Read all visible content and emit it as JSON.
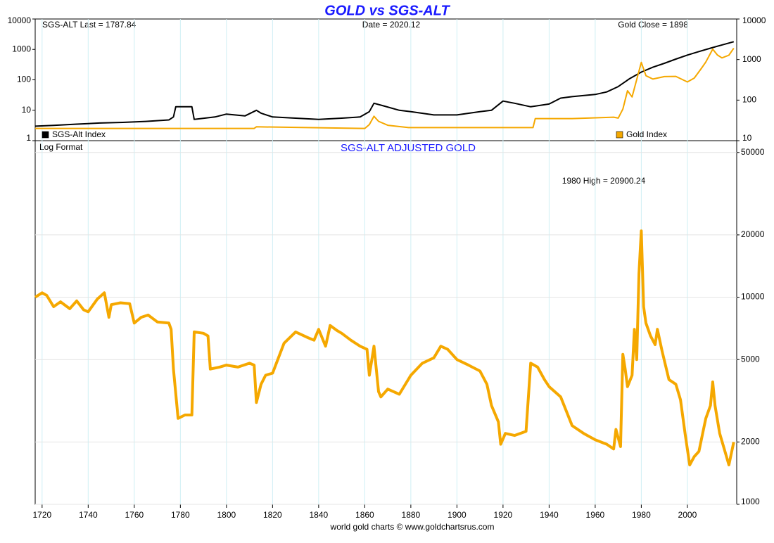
{
  "chart_data": [
    {
      "type": "line",
      "title": "GOLD vs SGS-ALT",
      "annotations": [
        "SGS-ALT Last = 1787.84",
        "Date = 2020.12",
        "Gold Close = 1898"
      ],
      "xlim": [
        1717,
        2021.4
      ],
      "ylim": [
        1,
        10000
      ],
      "yticks": [
        1,
        10,
        100,
        1000,
        10000
      ],
      "y2lim": [
        10,
        10000
      ],
      "y2ticks": [
        10,
        100,
        1000,
        10000
      ],
      "log_scale": true,
      "series": [
        {
          "name": "SGS-Alt Index",
          "color": "#000000",
          "x": [
            1717,
            1725,
            1735,
            1745,
            1755,
            1765,
            1775,
            1777,
            1778,
            1785,
            1786,
            1795,
            1800,
            1808,
            1813,
            1815,
            1820,
            1830,
            1840,
            1850,
            1858,
            1862,
            1864,
            1868,
            1875,
            1880,
            1890,
            1900,
            1910,
            1915,
            1920,
            1925,
            1932,
            1940,
            1945,
            1950,
            1960,
            1965,
            1970,
            1975,
            1980,
            1985,
            1990,
            1995,
            2000,
            2005,
            2010,
            2015,
            2020.12
          ],
          "values": [
            3,
            3.2,
            3.5,
            3.8,
            4,
            4.3,
            4.8,
            6,
            13,
            13,
            5,
            6,
            7.5,
            6.5,
            10,
            8,
            6,
            5.5,
            5,
            5.5,
            6,
            9,
            17,
            14,
            10,
            9,
            7,
            7,
            9,
            10,
            20,
            17,
            13,
            16,
            25,
            28,
            33,
            40,
            60,
            110,
            180,
            260,
            350,
            480,
            650,
            850,
            1100,
            1400,
            1787.84
          ]
        },
        {
          "name": "Gold Index",
          "color": "#f5a800",
          "axis": "y2",
          "x": [
            1717,
            1812,
            1813,
            1860,
            1862,
            1864,
            1866,
            1870,
            1879,
            1933,
            1934,
            1950,
            1968,
            1970,
            1972,
            1974,
            1976,
            1980,
            1982,
            1985,
            1990,
            1995,
            2000,
            2003,
            2006,
            2008,
            2011,
            2013,
            2015,
            2018,
            2020.12
          ],
          "values": [
            20,
            20,
            22,
            20,
            25,
            40,
            30,
            24,
            21,
            21,
            35,
            35,
            38,
            36,
            60,
            170,
            120,
            850,
            400,
            330,
            380,
            385,
            280,
            350,
            600,
            870,
            1800,
            1300,
            1100,
            1280,
            1898
          ]
        }
      ]
    },
    {
      "type": "line",
      "title": "SGS-ALT ADJUSTED  GOLD",
      "annotations": [
        "Log Format",
        "1980 High = 20900.24"
      ],
      "source": "world gold charts © www.goldchartsrus.com",
      "xlim": [
        1717,
        2021.4
      ],
      "xticks": [
        1720,
        1740,
        1760,
        1780,
        1800,
        1820,
        1840,
        1860,
        1880,
        1900,
        1920,
        1940,
        1960,
        1980,
        2000
      ],
      "ylim": [
        1000,
        57000
      ],
      "yticks": [
        1000,
        2000,
        5000,
        10000,
        20000,
        50000
      ],
      "log_scale": true,
      "series": [
        {
          "name": "SGS-ALT Adjusted Gold",
          "color": "#f5a800",
          "x": [
            1717,
            1720,
            1722,
            1725,
            1728,
            1732,
            1735,
            1738,
            1740,
            1744,
            1747,
            1749,
            1750,
            1754,
            1758,
            1760,
            1763,
            1766,
            1770,
            1775,
            1776,
            1777,
            1779,
            1782,
            1785,
            1786,
            1790,
            1792,
            1793,
            1797,
            1800,
            1805,
            1810,
            1812,
            1813,
            1815,
            1817,
            1820,
            1825,
            1830,
            1835,
            1838,
            1840,
            1843,
            1845,
            1848,
            1850,
            1854,
            1858,
            1861,
            1862,
            1864,
            1866,
            1867,
            1870,
            1875,
            1880,
            1885,
            1890,
            1893,
            1896,
            1900,
            1905,
            1910,
            1913,
            1915,
            1918,
            1919,
            1921,
            1925,
            1930,
            1932,
            1935,
            1938,
            1940,
            1945,
            1950,
            1955,
            1960,
            1965,
            1968,
            1969,
            1971,
            1972,
            1973,
            1974,
            1976,
            1977,
            1978,
            1979,
            1980,
            1981,
            1982,
            1984,
            1986,
            1987,
            1989,
            1992,
            1995,
            1997,
            1999,
            2001,
            2003,
            2005,
            2007,
            2008,
            2010,
            2011,
            2012,
            2014,
            2016,
            2018,
            2020.12
          ],
          "values": [
            10000,
            10500,
            10200,
            9000,
            9500,
            8800,
            9600,
            8700,
            8500,
            9800,
            10500,
            8000,
            9200,
            9400,
            9300,
            7500,
            8000,
            8200,
            7600,
            7500,
            7000,
            4500,
            2600,
            2700,
            2700,
            6800,
            6700,
            6500,
            4500,
            4600,
            4700,
            4600,
            4800,
            4700,
            3100,
            3800,
            4200,
            4300,
            6000,
            6800,
            6400,
            6200,
            7000,
            5800,
            7300,
            6900,
            6700,
            6200,
            5800,
            5600,
            4200,
            5800,
            3500,
            3300,
            3600,
            3400,
            4200,
            4800,
            5100,
            5800,
            5600,
            5000,
            4700,
            4400,
            3800,
            3000,
            2500,
            1950,
            2200,
            2150,
            2250,
            4800,
            4600,
            4000,
            3700,
            3300,
            2400,
            2200,
            2050,
            1950,
            1850,
            2300,
            1900,
            5300,
            4500,
            3700,
            4200,
            7000,
            5000,
            13000,
            20900.24,
            9000,
            7500,
            6500,
            5900,
            7000,
            5500,
            4000,
            3800,
            3200,
            2200,
            1550,
            1700,
            1800,
            2300,
            2600,
            3000,
            3900,
            3000,
            2200,
            1850,
            1550,
            2000
          ]
        }
      ]
    }
  ]
}
